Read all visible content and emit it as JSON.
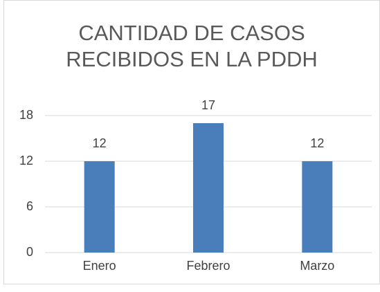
{
  "chart_data": {
    "type": "bar",
    "title": [
      "CANTIDAD DE CASOS",
      "RECIBIDOS EN LA PDDH"
    ],
    "categories": [
      "Enero",
      "Febrero",
      "Marzo"
    ],
    "values": [
      12,
      17,
      12
    ],
    "color": "#4a7ebb",
    "ylim": [
      0,
      18
    ],
    "yticks": [
      0,
      6,
      12,
      18
    ],
    "grid": true,
    "data_labels": true
  }
}
